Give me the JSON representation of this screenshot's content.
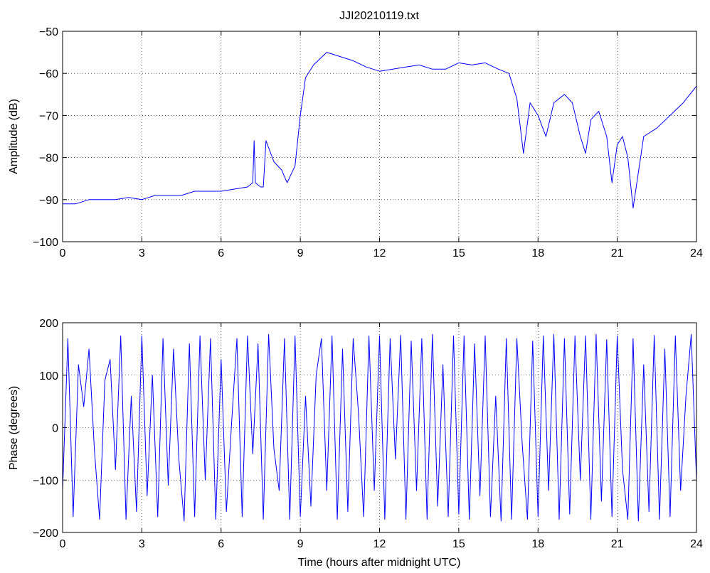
{
  "figure": {
    "title": "JJI20210119.txt",
    "background": "#ffffff",
    "line_color": "#0000ff"
  },
  "chart_data": [
    {
      "type": "line",
      "title": "JJI20210119.txt",
      "xlabel": "",
      "ylabel": "Amplitude (dB)",
      "xlim": [
        0,
        24
      ],
      "ylim": [
        -100,
        -50
      ],
      "xticks": [
        0,
        3,
        6,
        9,
        12,
        15,
        18,
        21,
        24
      ],
      "yticks": [
        -100,
        -90,
        -80,
        -70,
        -60,
        -50
      ],
      "grid": true,
      "series": [
        {
          "color": "#0000ff",
          "x": [
            0,
            0.5,
            1,
            1.5,
            2,
            2.5,
            3,
            3.5,
            4,
            4.5,
            5,
            5.5,
            6,
            6.5,
            7,
            7.2,
            7.25,
            7.3,
            7.5,
            7.6,
            7.7,
            8,
            8.3,
            8.5,
            8.8,
            9.0,
            9.2,
            9.5,
            10,
            10.5,
            11,
            11.5,
            12,
            12.5,
            13,
            13.5,
            14,
            14.5,
            15,
            15.5,
            16,
            16.5,
            16.9,
            17.2,
            17.45,
            17.7,
            18,
            18.3,
            18.6,
            19,
            19.3,
            19.6,
            19.8,
            20,
            20.3,
            20.6,
            20.8,
            21,
            21.2,
            21.4,
            21.6,
            22,
            22.5,
            23,
            23.5,
            24
          ],
          "y": [
            -91,
            -91,
            -90,
            -90,
            -90,
            -89.5,
            -90,
            -89,
            -89,
            -89,
            -88,
            -88,
            -88,
            -87.5,
            -87,
            -86,
            -76,
            -86,
            -87,
            -87,
            -76,
            -81,
            -83,
            -86,
            -82,
            -70,
            -61,
            -58,
            -55,
            -56,
            -57,
            -58.5,
            -59.5,
            -59,
            -58.5,
            -58,
            -59,
            -59,
            -57.5,
            -58,
            -57.5,
            -59,
            -60,
            -66,
            -79,
            -67,
            -70,
            -75,
            -67,
            -65,
            -67,
            -75,
            -79,
            -71,
            -69,
            -75,
            -86,
            -77,
            -75,
            -80,
            -92,
            -75,
            -73,
            -70,
            -67,
            -63
          ]
        }
      ]
    },
    {
      "type": "line",
      "title": "",
      "xlabel": "Time (hours after midnight UTC)",
      "ylabel": "Phase (degrees)",
      "xlim": [
        0,
        24
      ],
      "ylim": [
        -200,
        200
      ],
      "xticks": [
        0,
        3,
        6,
        9,
        12,
        15,
        18,
        21,
        24
      ],
      "yticks": [
        -200,
        -100,
        0,
        100,
        200
      ],
      "grid": true,
      "series": [
        {
          "color": "#0000ff",
          "x": [
            0.0,
            0.2,
            0.4,
            0.6,
            0.8,
            1.0,
            1.2,
            1.4,
            1.6,
            1.8,
            2.0,
            2.2,
            2.4,
            2.6,
            2.8,
            3.0,
            3.2,
            3.4,
            3.6,
            3.8,
            4.0,
            4.2,
            4.4,
            4.6,
            4.8,
            5.0,
            5.2,
            5.4,
            5.6,
            5.8,
            6.0,
            6.2,
            6.4,
            6.6,
            6.8,
            7.0,
            7.2,
            7.4,
            7.6,
            7.8,
            8.0,
            8.2,
            8.4,
            8.6,
            8.8,
            9.0,
            9.2,
            9.4,
            9.6,
            9.8,
            10.0,
            10.2,
            10.4,
            10.6,
            10.8,
            11.0,
            11.2,
            11.4,
            11.6,
            11.8,
            12.0,
            12.2,
            12.4,
            12.6,
            12.8,
            13.0,
            13.2,
            13.4,
            13.6,
            13.8,
            14.0,
            14.2,
            14.4,
            14.6,
            14.8,
            15.0,
            15.2,
            15.4,
            15.6,
            15.8,
            16.0,
            16.2,
            16.4,
            16.6,
            16.8,
            17.0,
            17.2,
            17.4,
            17.6,
            17.8,
            18.0,
            18.2,
            18.4,
            18.6,
            18.8,
            19.0,
            19.2,
            19.4,
            19.6,
            19.8,
            20.0,
            20.2,
            20.4,
            20.6,
            20.8,
            21.0,
            21.2,
            21.4,
            21.6,
            21.8,
            22.0,
            22.2,
            22.4,
            22.6,
            22.8,
            23.0,
            23.2,
            23.4,
            23.6,
            23.8,
            24.0
          ],
          "y": [
            -120,
            170,
            -170,
            120,
            40,
            150,
            -40,
            -175,
            90,
            130,
            -80,
            175,
            -175,
            60,
            -160,
            175,
            -130,
            100,
            -170,
            170,
            -110,
            150,
            -60,
            -178,
            160,
            -170,
            175,
            -100,
            170,
            -175,
            130,
            -160,
            10,
            170,
            -170,
            175,
            -50,
            160,
            -175,
            178,
            -40,
            -120,
            170,
            -175,
            175,
            -170,
            60,
            -150,
            100,
            170,
            -120,
            175,
            -175,
            150,
            -160,
            170,
            30,
            -170,
            175,
            -120,
            175,
            -175,
            170,
            -60,
            176,
            -175,
            165,
            -120,
            170,
            -175,
            178,
            -150,
            120,
            -170,
            175,
            -165,
            175,
            -175,
            160,
            -130,
            175,
            -170,
            60,
            -178,
            170,
            -175,
            170,
            -30,
            -175,
            165,
            -170,
            175,
            -120,
            178,
            -175,
            170,
            -165,
            175,
            -100,
            175,
            -175,
            178,
            -140,
            168,
            -170,
            175,
            -80,
            -175,
            170,
            -178,
            120,
            -160,
            176,
            -175,
            150,
            -170,
            175,
            -120,
            60,
            178,
            -100
          ]
        }
      ]
    }
  ]
}
